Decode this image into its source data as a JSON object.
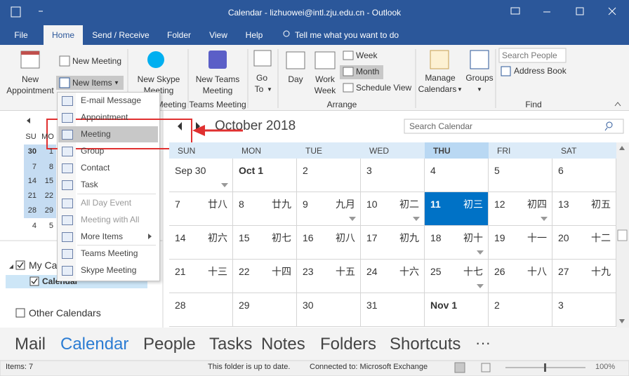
{
  "title_bar": {
    "title": "Calendar - lizhuowei@intl.zju.edu.cn - Outlook"
  },
  "tabs": {
    "items": [
      "File",
      "Home",
      "Send / Receive",
      "Folder",
      "View",
      "Help"
    ],
    "selected": 1,
    "tell_me": "Tell me what you want to do"
  },
  "ribbon": {
    "new_appointment": [
      "New",
      "Appointment"
    ],
    "new_meeting": "New Meeting",
    "new_items": "New Items",
    "new_skype_meeting": [
      "New Skype",
      "Meeting"
    ],
    "skype_group": "Skype Meeting",
    "new_teams_meeting": [
      "New Teams",
      "Meeting"
    ],
    "teams_group": "Teams Meeting",
    "go_to": [
      "Go",
      "To"
    ],
    "day": "Day",
    "work_week": [
      "Work",
      "Week"
    ],
    "week": "Week",
    "month": "Month",
    "schedule_view": "Schedule View",
    "arrange_group": "Arrange",
    "manage_calendars": [
      "Manage",
      "Calendars"
    ],
    "groups": "Groups",
    "search_people": "Search People",
    "address_book": "Address Book",
    "find_group": "Find"
  },
  "new_items_menu": {
    "items": [
      {
        "label": "E-mail Message"
      },
      {
        "label": "Appointment"
      },
      {
        "label": "Meeting"
      },
      {
        "label": "Group"
      },
      {
        "label": "Contact"
      },
      {
        "label": "Task"
      },
      {
        "label": "All Day Event",
        "disabled": true
      },
      {
        "label": "Meeting with All",
        "disabled": true
      },
      {
        "label": "More Items",
        "submenu": true
      },
      {
        "label": "Teams Meeting"
      },
      {
        "label": "Skype Meeting"
      }
    ],
    "highlighted": 2
  },
  "mini_calendar": {
    "weekdays": [
      "SU",
      "MO"
    ],
    "weeks": [
      [
        30,
        1
      ],
      [
        7,
        8
      ],
      [
        14,
        15
      ],
      [
        21,
        22
      ],
      [
        28,
        29
      ],
      [
        4,
        5
      ]
    ]
  },
  "folders": {
    "my_calendars": "My Calendars",
    "calendar": "Calendar",
    "other_calendars": "Other Calendars"
  },
  "calendar": {
    "month": "October 2018",
    "search_placeholder": "Search Calendar",
    "weekdays": [
      "SUN",
      "MON",
      "TUE",
      "WED",
      "THU",
      "FRI",
      "SAT"
    ],
    "selected_weekday": 4,
    "weeks": [
      [
        {
          "date": "Sep 30",
          "more": true
        },
        {
          "date": "Oct 1",
          "bold": true
        },
        {
          "date": 2
        },
        {
          "date": 3
        },
        {
          "date": 4
        },
        {
          "date": 5
        },
        {
          "date": 6
        }
      ],
      [
        {
          "date": 7,
          "lunar": "廿八"
        },
        {
          "date": 8,
          "lunar": "廿九"
        },
        {
          "date": 9,
          "lunar": "九月",
          "more": true
        },
        {
          "date": 10,
          "lunar": "初二",
          "more": true
        },
        {
          "date": 11,
          "lunar": "初三",
          "selected": true
        },
        {
          "date": 12,
          "lunar": "初四",
          "more": true
        },
        {
          "date": 13,
          "lunar": "初五"
        }
      ],
      [
        {
          "date": 14,
          "lunar": "初六"
        },
        {
          "date": 15,
          "lunar": "初七"
        },
        {
          "date": 16,
          "lunar": "初八"
        },
        {
          "date": 17,
          "lunar": "初九"
        },
        {
          "date": 18,
          "lunar": "初十",
          "more": true
        },
        {
          "date": 19,
          "lunar": "十一"
        },
        {
          "date": 20,
          "lunar": "十二"
        }
      ],
      [
        {
          "date": 21,
          "lunar": "十三"
        },
        {
          "date": 22,
          "lunar": "十四"
        },
        {
          "date": 23,
          "lunar": "十五"
        },
        {
          "date": 24,
          "lunar": "十六"
        },
        {
          "date": 25,
          "lunar": "十七",
          "more": true
        },
        {
          "date": 26,
          "lunar": "十八"
        },
        {
          "date": 27,
          "lunar": "十九"
        }
      ],
      [
        {
          "date": 28
        },
        {
          "date": 29
        },
        {
          "date": 30
        },
        {
          "date": 31
        },
        {
          "date": "Nov 1",
          "bold": true
        },
        {
          "date": 2
        },
        {
          "date": 3
        }
      ]
    ]
  },
  "nav": {
    "items": [
      "Mail",
      "Calendar",
      "People",
      "Tasks",
      "Notes",
      "Folders",
      "Shortcuts"
    ],
    "selected": 1,
    "more": "···"
  },
  "status_bar": {
    "items": "Items: 7",
    "sync": "This folder is up to date.",
    "connection": "Connected to: Microsoft Exchange",
    "zoom": "100%"
  }
}
